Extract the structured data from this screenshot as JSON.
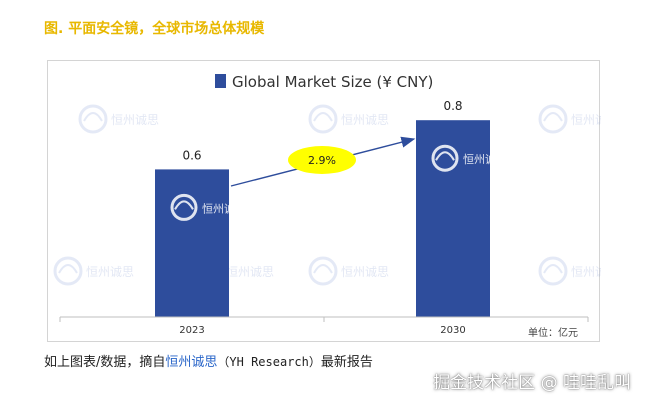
{
  "figure": {
    "title": "图. 平面安全镜，全球市场总体规模"
  },
  "chart_data": {
    "type": "bar",
    "title": "Global Market Size (¥ CNY)",
    "legend": [
      "Global Market Size (¥ CNY)"
    ],
    "legend_position": "top",
    "categories": [
      "2023",
      "2030"
    ],
    "values": [
      0.6,
      0.8
    ],
    "data_labels": [
      "0.6",
      "0.8"
    ],
    "ylim": [
      0,
      1
    ],
    "unit_note": "单位：亿元",
    "growth_annotation": "2.9%",
    "grid": false,
    "colors": {
      "bar": "#2e4d9c",
      "bubble": "#ffff00",
      "arrow": "#2e4d9c"
    }
  },
  "watermark": {
    "brand": "恒州诚思"
  },
  "caption": {
    "prefix": "如上图表/数据，摘自",
    "source_name": "恒州诚思",
    "source_en": "（YH Research）",
    "suffix": "最新报告"
  },
  "overlay": {
    "text": "掘金技术社区 @ 哇哇乱叫"
  }
}
